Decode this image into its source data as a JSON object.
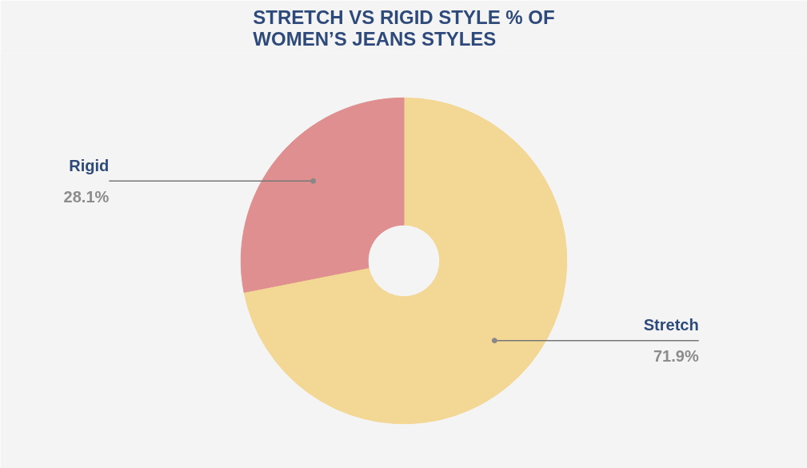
{
  "chart_data": {
    "type": "donut",
    "title": "STRETCH VS RIGID STYLE % OF\nWOMEN’S JEANS STYLES",
    "categories": [
      "Stretch",
      "Rigid"
    ],
    "values": [
      71.9,
      28.1
    ],
    "value_labels": [
      "71.9%",
      "28.1%"
    ],
    "colors": [
      "#f3d794",
      "#df8f8f"
    ]
  }
}
